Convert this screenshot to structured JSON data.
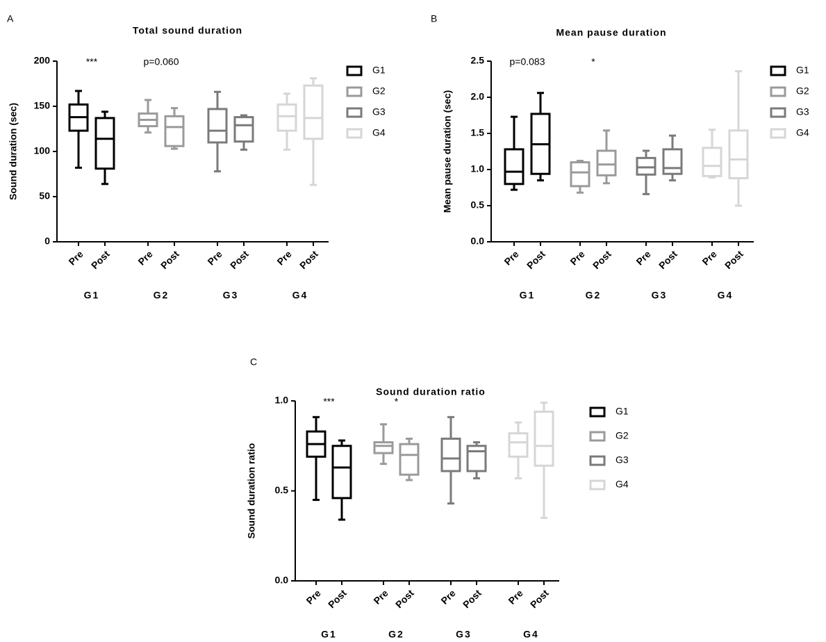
{
  "chart_data": [
    {
      "type": "box",
      "panel_label": "A",
      "title": "Total sound duration",
      "ylabel": "Sound duration (sec)",
      "categories": [
        "Pre",
        "Post"
      ],
      "ylim": [
        0,
        200
      ],
      "yticks": [
        0,
        50,
        100,
        150,
        200
      ],
      "annotations": [
        {
          "text": "***",
          "group": 0
        },
        {
          "text": "p=0.060",
          "group": 1
        }
      ],
      "series": [
        {
          "name": "G1",
          "color": "#000000",
          "boxes": [
            {
              "min": 82,
              "q1": 123,
              "median": 138,
              "q3": 152,
              "max": 167
            },
            {
              "min": 64,
              "q1": 81,
              "median": 114,
              "q3": 137,
              "max": 144
            }
          ]
        },
        {
          "name": "G2",
          "color": "#9a9a9a",
          "boxes": [
            {
              "min": 121,
              "q1": 128,
              "median": 135,
              "q3": 142,
              "max": 157
            },
            {
              "min": 103,
              "q1": 106,
              "median": 127,
              "q3": 139,
              "max": 148
            }
          ]
        },
        {
          "name": "G3",
          "color": "#7a7a7a",
          "boxes": [
            {
              "min": 78,
              "q1": 110,
              "median": 123,
              "q3": 147,
              "max": 166
            },
            {
              "min": 102,
              "q1": 111,
              "median": 129,
              "q3": 138,
              "max": 140
            }
          ]
        },
        {
          "name": "G4",
          "color": "#d6d6d6",
          "boxes": [
            {
              "min": 102,
              "q1": 123,
              "median": 139,
              "q3": 152,
              "max": 164
            },
            {
              "min": 63,
              "q1": 114,
              "median": 137,
              "q3": 173,
              "max": 181
            }
          ]
        }
      ]
    },
    {
      "type": "box",
      "panel_label": "B",
      "title": "Mean pause duration",
      "ylabel": "Mean pause duration (sec)",
      "categories": [
        "Pre",
        "Post"
      ],
      "ylim": [
        0,
        2.5
      ],
      "yticks": [
        {
          "value": 0,
          "label": "0.0"
        },
        0.5,
        {
          "value": 1,
          "label": "1.0"
        },
        1.5,
        {
          "value": 2,
          "label": "2.0"
        },
        2.5
      ],
      "annotations": [
        {
          "text": "p=0.083",
          "group": 0
        },
        {
          "text": "*",
          "group": 1
        }
      ],
      "series": [
        {
          "name": "G1",
          "color": "#000000",
          "boxes": [
            {
              "min": 0.72,
              "q1": 0.8,
              "median": 0.97,
              "q3": 1.28,
              "max": 1.73
            },
            {
              "min": 0.85,
              "q1": 0.94,
              "median": 1.35,
              "q3": 1.77,
              "max": 2.06
            }
          ]
        },
        {
          "name": "G2",
          "color": "#9a9a9a",
          "boxes": [
            {
              "min": 0.68,
              "q1": 0.77,
              "median": 0.96,
              "q3": 1.1,
              "max": 1.12
            },
            {
              "min": 0.81,
              "q1": 0.92,
              "median": 1.07,
              "q3": 1.26,
              "max": 1.54
            }
          ]
        },
        {
          "name": "G3",
          "color": "#7a7a7a",
          "boxes": [
            {
              "min": 0.66,
              "q1": 0.93,
              "median": 1.03,
              "q3": 1.16,
              "max": 1.26
            },
            {
              "min": 0.85,
              "q1": 0.94,
              "median": 1.02,
              "q3": 1.28,
              "max": 1.47
            }
          ]
        },
        {
          "name": "G4",
          "color": "#d6d6d6",
          "boxes": [
            {
              "min": 0.89,
              "q1": 0.91,
              "median": 1.05,
              "q3": 1.3,
              "max": 1.55
            },
            {
              "min": 0.5,
              "q1": 0.88,
              "median": 1.14,
              "q3": 1.54,
              "max": 2.36
            }
          ]
        }
      ]
    },
    {
      "type": "box",
      "panel_label": "C",
      "title": "Sound duration ratio",
      "ylabel": "Sound duration ratio",
      "categories": [
        "Pre",
        "Post"
      ],
      "ylim": [
        0,
        1
      ],
      "yticks": [
        {
          "value": 0,
          "label": "0.0"
        },
        0.5,
        {
          "value": 1,
          "label": "1.0"
        }
      ],
      "annotations": [
        {
          "text": "***",
          "group": 0
        },
        {
          "text": "*",
          "group": 1
        }
      ],
      "series": [
        {
          "name": "G1",
          "color": "#000000",
          "boxes": [
            {
              "min": 0.45,
              "q1": 0.69,
              "median": 0.76,
              "q3": 0.83,
              "max": 0.91
            },
            {
              "min": 0.34,
              "q1": 0.46,
              "median": 0.63,
              "q3": 0.75,
              "max": 0.78
            }
          ]
        },
        {
          "name": "G2",
          "color": "#9a9a9a",
          "boxes": [
            {
              "min": 0.65,
              "q1": 0.71,
              "median": 0.75,
              "q3": 0.77,
              "max": 0.87
            },
            {
              "min": 0.56,
              "q1": 0.59,
              "median": 0.7,
              "q3": 0.76,
              "max": 0.79
            }
          ]
        },
        {
          "name": "G3",
          "color": "#7a7a7a",
          "boxes": [
            {
              "min": 0.43,
              "q1": 0.61,
              "median": 0.68,
              "q3": 0.79,
              "max": 0.91
            },
            {
              "min": 0.57,
              "q1": 0.61,
              "median": 0.72,
              "q3": 0.75,
              "max": 0.77
            }
          ]
        },
        {
          "name": "G4",
          "color": "#d6d6d6",
          "boxes": [
            {
              "min": 0.57,
              "q1": 0.69,
              "median": 0.77,
              "q3": 0.82,
              "max": 0.88
            },
            {
              "min": 0.35,
              "q1": 0.64,
              "median": 0.75,
              "q3": 0.94,
              "max": 0.99
            }
          ]
        }
      ]
    }
  ]
}
